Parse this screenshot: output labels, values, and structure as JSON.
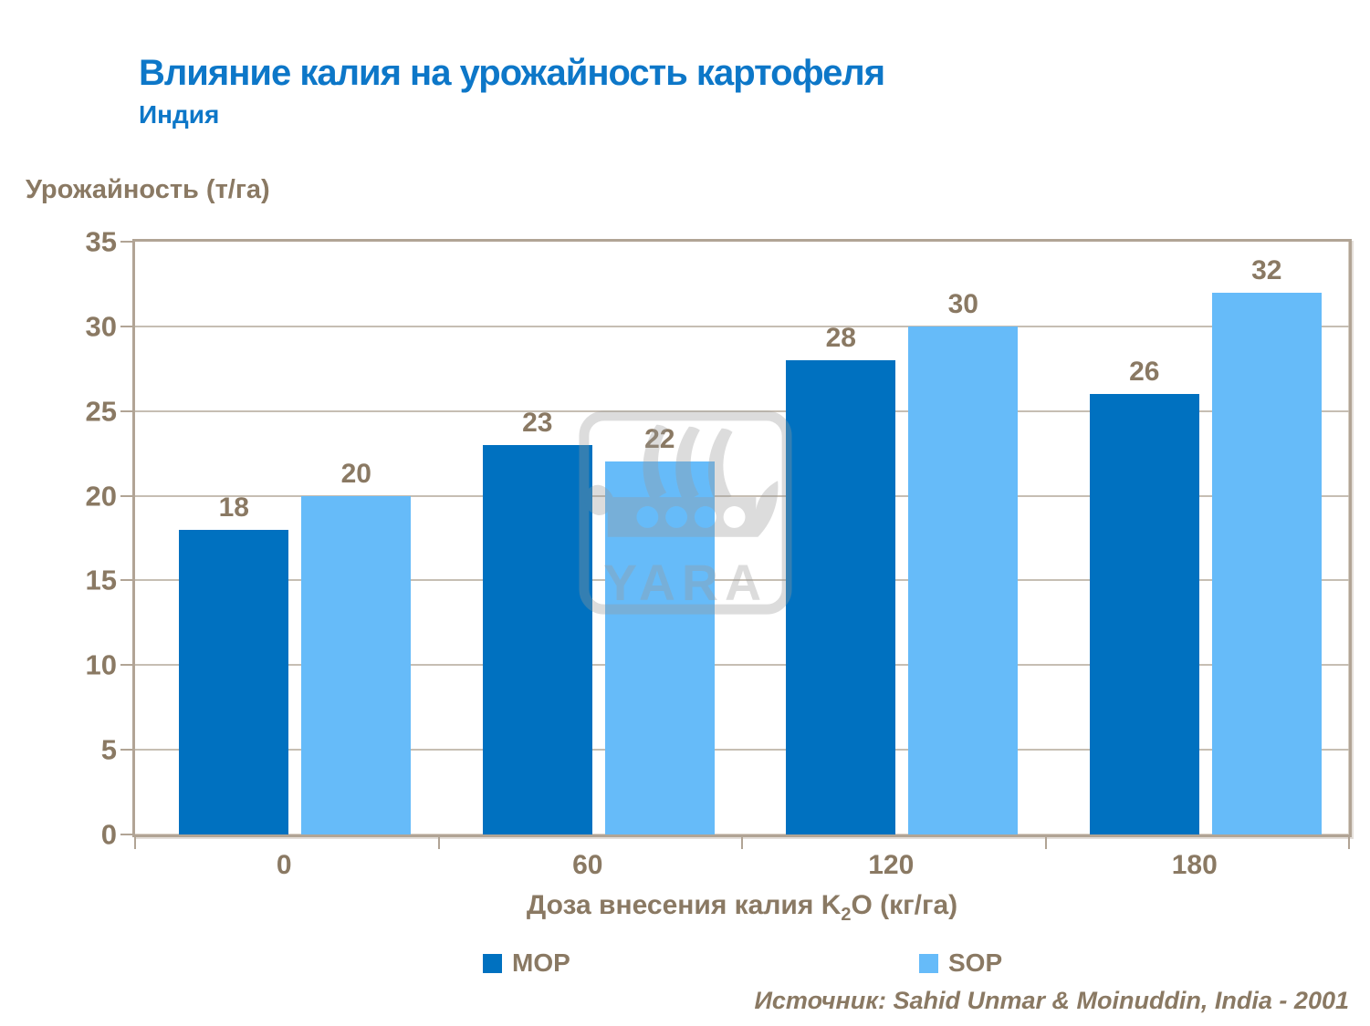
{
  "header": {
    "title": "Влияние калия на урожайность картофеля",
    "subtitle": "Индия"
  },
  "chart_data": {
    "type": "bar",
    "title": "Влияние калия на урожайность картофеля",
    "subtitle": "Индия",
    "categories": [
      "0",
      "60",
      "120",
      "180"
    ],
    "series": [
      {
        "name": "MOP",
        "color": "#0071c0",
        "values": [
          18,
          23,
          28,
          26
        ]
      },
      {
        "name": "SOP",
        "color": "#66bbf9",
        "values": [
          20,
          22,
          30,
          32
        ]
      }
    ],
    "ylabel": "Урожайность (т/га)",
    "xlabel": "Доза внесения калия K2O (кг/га)",
    "xlabel_parts": {
      "prefix": "Доза внесения калия K",
      "sub": "2",
      "suffix": "O (кг/га)"
    },
    "ylim": [
      0,
      35
    ],
    "ytick_step": 5,
    "grid": "horizontal",
    "legend_position": "bottom"
  },
  "watermark": {
    "text": "YARA"
  },
  "footer": {
    "source": "Источник: Sahid Unmar & Moinuddin, India - 2001"
  },
  "colors": {
    "title_blue": "#0d77c8",
    "text_brown": "#8a7963",
    "axis_frame": "#b1a495",
    "gridline": "#c6beb3"
  }
}
